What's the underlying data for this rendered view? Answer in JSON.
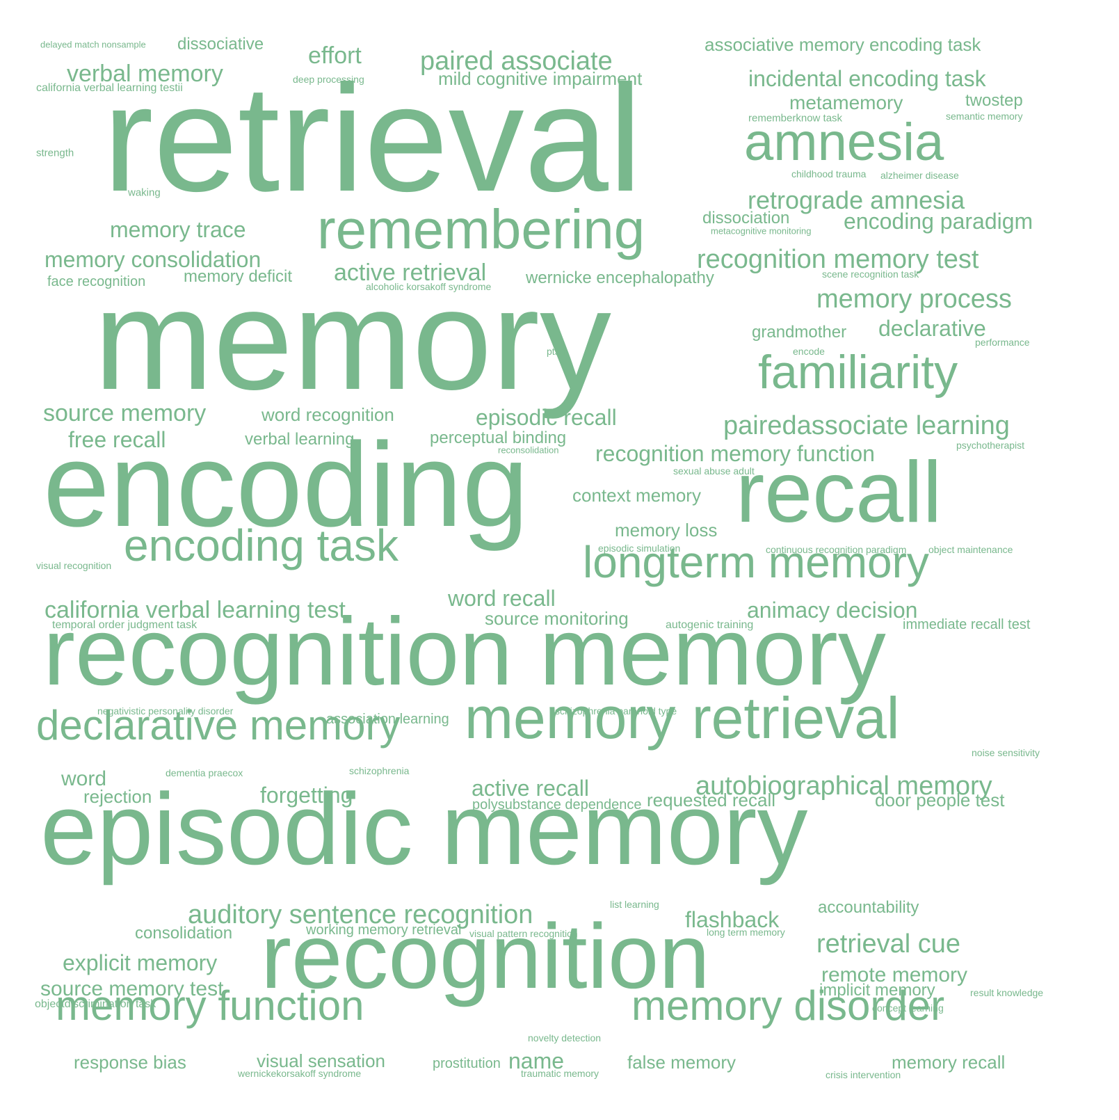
{
  "color": "#79b88d",
  "words": [
    "retrieval",
    "memory",
    "encoding",
    "recognition memory",
    "episodic memory",
    "recognition",
    "recall",
    "remembering",
    "amnesia",
    "familiarity",
    "longterm memory",
    "memory retrieval",
    "encoding task",
    "declarative memory",
    "memory function",
    "memory disorder",
    "paired associate",
    "verbal memory",
    "effort",
    "dissociative",
    "delayed match nonsample",
    "associative memory encoding task",
    "incidental encoding task",
    "metamemory",
    "twostep",
    "rememberknow task",
    "semantic memory",
    "mild cognitive impairment",
    "deep processing",
    "california verbal learning testii",
    "strength",
    "waking",
    "childhood trauma",
    "alzheimer disease",
    "retrograde amnesia",
    "dissociation",
    "encoding paradigm",
    "metacognitive monitoring",
    "memory trace",
    "memory consolidation",
    "recognition memory test",
    "scene recognition task",
    "face recognition",
    "memory deficit",
    "active retrieval",
    "alcoholic korsakoff syndrome",
    "wernicke encephalopathy",
    "memory process",
    "grandmother",
    "declarative",
    "encode",
    "performance",
    "ptsd",
    "source memory",
    "word recognition",
    "episodic recall",
    "pairedassociate learning",
    "free recall",
    "verbal learning",
    "perceptual binding",
    "reconsolidation",
    "recognition memory function",
    "psychotherapist",
    "sexual abuse adult",
    "context memory",
    "memory loss",
    "episodic simulation",
    "continuous recognition paradigm",
    "object maintenance",
    "visual recognition",
    "word recall",
    "california verbal learning test",
    "source monitoring",
    "animacy decision",
    "temporal order judgment task",
    "autogenic training",
    "immediate recall test",
    "negativistic personality disorder",
    "association learning",
    "schizophrenia paranoid type",
    "noise sensitivity",
    "word",
    "dementia praecox",
    "schizophrenia",
    "rejection",
    "forgetting",
    "active recall",
    "polysubstance dependence",
    "requested recall",
    "autobiographical memory",
    "door people test",
    "list learning",
    "accountability",
    "auditory sentence recognition",
    "flashback",
    "consolidation",
    "working memory retrieval",
    "visual pattern recognition",
    "long term memory",
    "retrieval cue",
    "explicit memory",
    "remote memory",
    "source memory test",
    "implicit memory",
    "result knowledge",
    "objectdiscrimination task",
    "concept learning",
    "novelty detection",
    "response bias",
    "visual sensation",
    "prostitution",
    "name",
    "false memory",
    "memory recall",
    "wernickekorsakoff syndrome",
    "traumatic memory",
    "crisis intervention"
  ]
}
